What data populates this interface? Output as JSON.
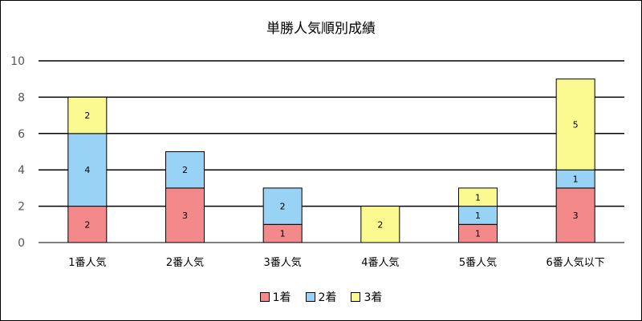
{
  "chart_data": {
    "type": "bar",
    "stacked": true,
    "title": "単勝人気順別成績",
    "categories": [
      "1番人気",
      "2番人気",
      "3番人気",
      "4番人気",
      "5番人気",
      "6番人気以下"
    ],
    "series": [
      {
        "name": "1着",
        "color": "#f4898b",
        "values": [
          2,
          3,
          1,
          0,
          1,
          3
        ]
      },
      {
        "name": "2着",
        "color": "#98d3f6",
        "values": [
          4,
          2,
          2,
          0,
          1,
          1
        ]
      },
      {
        "name": "3着",
        "color": "#fafa91",
        "values": [
          2,
          0,
          0,
          2,
          1,
          5
        ]
      }
    ],
    "ylim": [
      0,
      10
    ],
    "yticks": [
      "0",
      "2",
      "4",
      "6",
      "8",
      "10"
    ],
    "grid": true,
    "legend_position": "bottom",
    "data_labels": true
  }
}
